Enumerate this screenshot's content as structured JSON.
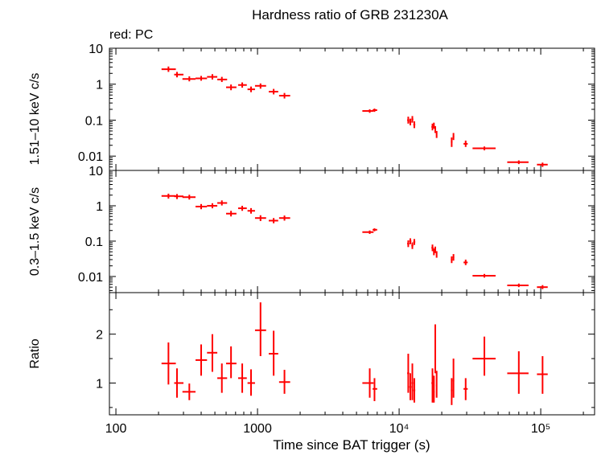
{
  "chart_data": {
    "type": "scatter",
    "title": "Hardness ratio of GRB 231230A",
    "legend_text": "red: PC",
    "xlabel": "Time since BAT trigger (s)",
    "x_scale": "log",
    "xlim": [
      90,
      240000
    ],
    "x_ticks": [
      {
        "value": 100,
        "label": "100"
      },
      {
        "value": 1000,
        "label": "1000"
      },
      {
        "value": 10000,
        "label": "10⁴"
      },
      {
        "value": 100000,
        "label": "10⁵"
      }
    ],
    "series_color": "#ff0000",
    "panels": [
      {
        "id": "hard",
        "ylabel": "1.51–10 keV c/s",
        "y_scale": "log",
        "ylim": [
          0.004,
          10
        ],
        "y_ticks": [
          {
            "value": 10,
            "label": "10"
          },
          {
            "value": 1,
            "label": "1"
          },
          {
            "value": 0.1,
            "label": "0.1"
          },
          {
            "value": 0.01,
            "label": "0.01"
          }
        ],
        "points": [
          {
            "t": 235,
            "tlo": 210,
            "thi": 265,
            "v": 2.6,
            "vlo": 2.2,
            "vhi": 3.1
          },
          {
            "t": 270,
            "tlo": 258,
            "thi": 300,
            "v": 1.85,
            "vlo": 1.55,
            "vhi": 2.2
          },
          {
            "t": 330,
            "tlo": 295,
            "thi": 365,
            "v": 1.4,
            "vlo": 1.2,
            "vhi": 1.65
          },
          {
            "t": 400,
            "tlo": 365,
            "thi": 440,
            "v": 1.45,
            "vlo": 1.25,
            "vhi": 1.7
          },
          {
            "t": 480,
            "tlo": 440,
            "thi": 520,
            "v": 1.6,
            "vlo": 1.35,
            "vhi": 1.9
          },
          {
            "t": 560,
            "tlo": 520,
            "thi": 610,
            "v": 1.35,
            "vlo": 1.15,
            "vhi": 1.6
          },
          {
            "t": 650,
            "tlo": 600,
            "thi": 710,
            "v": 0.82,
            "vlo": 0.68,
            "vhi": 0.98
          },
          {
            "t": 780,
            "tlo": 730,
            "thi": 840,
            "v": 0.95,
            "vlo": 0.8,
            "vhi": 1.12
          },
          {
            "t": 900,
            "tlo": 850,
            "thi": 960,
            "v": 0.72,
            "vlo": 0.6,
            "vhi": 0.86
          },
          {
            "t": 1050,
            "tlo": 960,
            "thi": 1150,
            "v": 0.9,
            "vlo": 0.75,
            "vhi": 1.05
          },
          {
            "t": 1300,
            "tlo": 1200,
            "thi": 1400,
            "v": 0.62,
            "vlo": 0.52,
            "vhi": 0.74
          },
          {
            "t": 1550,
            "tlo": 1420,
            "thi": 1700,
            "v": 0.48,
            "vlo": 0.4,
            "vhi": 0.57
          },
          {
            "t": 6200,
            "tlo": 5500,
            "thi": 6600,
            "v": 0.18,
            "vlo": 0.16,
            "vhi": 0.2
          },
          {
            "t": 6700,
            "tlo": 6500,
            "thi": 7000,
            "v": 0.19,
            "vlo": 0.17,
            "vhi": 0.21
          },
          {
            "t": 11600,
            "tlo": 11400,
            "thi": 11800,
            "v": 0.1,
            "vlo": 0.08,
            "vhi": 0.125
          },
          {
            "t": 12000,
            "tlo": 11800,
            "thi": 12200,
            "v": 0.09,
            "vlo": 0.072,
            "vhi": 0.11
          },
          {
            "t": 12400,
            "tlo": 12200,
            "thi": 12600,
            "v": 0.105,
            "vlo": 0.085,
            "vhi": 0.13
          },
          {
            "t": 12800,
            "tlo": 12600,
            "thi": 13000,
            "v": 0.075,
            "vlo": 0.06,
            "vhi": 0.093
          },
          {
            "t": 17200,
            "tlo": 16900,
            "thi": 17500,
            "v": 0.065,
            "vlo": 0.052,
            "vhi": 0.08
          },
          {
            "t": 17600,
            "tlo": 17400,
            "thi": 17800,
            "v": 0.07,
            "vlo": 0.058,
            "vhi": 0.085
          },
          {
            "t": 18000,
            "tlo": 17800,
            "thi": 18200,
            "v": 0.055,
            "vlo": 0.044,
            "vhi": 0.068
          },
          {
            "t": 18400,
            "tlo": 18200,
            "thi": 18600,
            "v": 0.04,
            "vlo": 0.032,
            "vhi": 0.05
          },
          {
            "t": 23500,
            "tlo": 23200,
            "thi": 23800,
            "v": 0.025,
            "vlo": 0.018,
            "vhi": 0.033
          },
          {
            "t": 24200,
            "tlo": 23900,
            "thi": 24500,
            "v": 0.035,
            "vlo": 0.028,
            "vhi": 0.044
          },
          {
            "t": 29500,
            "tlo": 28500,
            "thi": 30500,
            "v": 0.022,
            "vlo": 0.018,
            "vhi": 0.027
          },
          {
            "t": 40000,
            "tlo": 33000,
            "thi": 48000,
            "v": 0.0165,
            "vlo": 0.0145,
            "vhi": 0.0185
          },
          {
            "t": 70000,
            "tlo": 58000,
            "thi": 82000,
            "v": 0.0068,
            "vlo": 0.006,
            "vhi": 0.0076
          },
          {
            "t": 103000,
            "tlo": 94000,
            "thi": 112000,
            "v": 0.0058,
            "vlo": 0.005,
            "vhi": 0.0066
          }
        ]
      },
      {
        "id": "soft",
        "ylabel": "0.3–1.5 keV c/s",
        "y_scale": "log",
        "ylim": [
          0.0035,
          10
        ],
        "y_ticks": [
          {
            "value": 10,
            "label": "10"
          },
          {
            "value": 1,
            "label": "1"
          },
          {
            "value": 0.1,
            "label": "0.1"
          },
          {
            "value": 0.01,
            "label": "0.01"
          }
        ],
        "points": [
          {
            "t": 235,
            "tlo": 210,
            "thi": 265,
            "v": 1.9,
            "vlo": 1.6,
            "vhi": 2.2
          },
          {
            "t": 270,
            "tlo": 258,
            "thi": 300,
            "v": 1.85,
            "vlo": 1.55,
            "vhi": 2.15
          },
          {
            "t": 330,
            "tlo": 295,
            "thi": 365,
            "v": 1.75,
            "vlo": 1.5,
            "vhi": 2.05
          },
          {
            "t": 400,
            "tlo": 365,
            "thi": 440,
            "v": 0.95,
            "vlo": 0.8,
            "vhi": 1.12
          },
          {
            "t": 480,
            "tlo": 440,
            "thi": 520,
            "v": 1.0,
            "vlo": 0.85,
            "vhi": 1.18
          },
          {
            "t": 560,
            "tlo": 520,
            "thi": 610,
            "v": 1.2,
            "vlo": 1.02,
            "vhi": 1.42
          },
          {
            "t": 650,
            "tlo": 600,
            "thi": 710,
            "v": 0.6,
            "vlo": 0.5,
            "vhi": 0.72
          },
          {
            "t": 780,
            "tlo": 730,
            "thi": 840,
            "v": 0.85,
            "vlo": 0.72,
            "vhi": 1.0
          },
          {
            "t": 900,
            "tlo": 850,
            "thi": 960,
            "v": 0.72,
            "vlo": 0.6,
            "vhi": 0.86
          },
          {
            "t": 1050,
            "tlo": 960,
            "thi": 1150,
            "v": 0.45,
            "vlo": 0.37,
            "vhi": 0.54
          },
          {
            "t": 1300,
            "tlo": 1200,
            "thi": 1400,
            "v": 0.38,
            "vlo": 0.32,
            "vhi": 0.45
          },
          {
            "t": 1550,
            "tlo": 1420,
            "thi": 1700,
            "v": 0.45,
            "vlo": 0.38,
            "vhi": 0.53
          },
          {
            "t": 6200,
            "tlo": 5500,
            "thi": 6600,
            "v": 0.18,
            "vlo": 0.16,
            "vhi": 0.2
          },
          {
            "t": 6700,
            "tlo": 6500,
            "thi": 7000,
            "v": 0.21,
            "vlo": 0.19,
            "vhi": 0.23
          },
          {
            "t": 11600,
            "tlo": 11400,
            "thi": 11800,
            "v": 0.085,
            "vlo": 0.068,
            "vhi": 0.105
          },
          {
            "t": 12000,
            "tlo": 11800,
            "thi": 12200,
            "v": 0.1,
            "vlo": 0.082,
            "vhi": 0.12
          },
          {
            "t": 12400,
            "tlo": 12200,
            "thi": 12600,
            "v": 0.075,
            "vlo": 0.06,
            "vhi": 0.092
          },
          {
            "t": 12800,
            "tlo": 12600,
            "thi": 13000,
            "v": 0.095,
            "vlo": 0.078,
            "vhi": 0.115
          },
          {
            "t": 17200,
            "tlo": 16900,
            "thi": 17500,
            "v": 0.065,
            "vlo": 0.052,
            "vhi": 0.08
          },
          {
            "t": 17600,
            "tlo": 17400,
            "thi": 17800,
            "v": 0.05,
            "vlo": 0.04,
            "vhi": 0.062
          },
          {
            "t": 18000,
            "tlo": 17800,
            "thi": 18200,
            "v": 0.058,
            "vlo": 0.046,
            "vhi": 0.07
          },
          {
            "t": 18400,
            "tlo": 18200,
            "thi": 18600,
            "v": 0.042,
            "vlo": 0.034,
            "vhi": 0.052
          },
          {
            "t": 23500,
            "tlo": 23200,
            "thi": 23800,
            "v": 0.03,
            "vlo": 0.024,
            "vhi": 0.037
          },
          {
            "t": 24200,
            "tlo": 23900,
            "thi": 24500,
            "v": 0.035,
            "vlo": 0.028,
            "vhi": 0.043
          },
          {
            "t": 29500,
            "tlo": 28500,
            "thi": 30500,
            "v": 0.025,
            "vlo": 0.021,
            "vhi": 0.03
          },
          {
            "t": 40000,
            "tlo": 33000,
            "thi": 48000,
            "v": 0.0105,
            "vlo": 0.0093,
            "vhi": 0.0118
          },
          {
            "t": 70000,
            "tlo": 58000,
            "thi": 82000,
            "v": 0.0056,
            "vlo": 0.005,
            "vhi": 0.0063
          },
          {
            "t": 103000,
            "tlo": 94000,
            "thi": 112000,
            "v": 0.005,
            "vlo": 0.0044,
            "vhi": 0.0057
          }
        ]
      },
      {
        "id": "ratio",
        "ylabel": "Ratio",
        "y_scale": "linear",
        "ylim": [
          0.35,
          2.85
        ],
        "y_ticks": [
          {
            "value": 2,
            "label": "2"
          },
          {
            "value": 1,
            "label": "1"
          }
        ],
        "points": [
          {
            "t": 235,
            "tlo": 210,
            "thi": 265,
            "v": 1.4,
            "vlo": 0.97,
            "vhi": 1.83
          },
          {
            "t": 270,
            "tlo": 258,
            "thi": 300,
            "v": 1.0,
            "vlo": 0.7,
            "vhi": 1.3
          },
          {
            "t": 330,
            "tlo": 295,
            "thi": 365,
            "v": 0.82,
            "vlo": 0.65,
            "vhi": 0.99
          },
          {
            "t": 400,
            "tlo": 365,
            "thi": 440,
            "v": 1.47,
            "vlo": 1.15,
            "vhi": 1.79
          },
          {
            "t": 480,
            "tlo": 440,
            "thi": 520,
            "v": 1.62,
            "vlo": 1.23,
            "vhi": 2.0
          },
          {
            "t": 560,
            "tlo": 520,
            "thi": 610,
            "v": 1.1,
            "vlo": 0.8,
            "vhi": 1.4
          },
          {
            "t": 650,
            "tlo": 600,
            "thi": 710,
            "v": 1.4,
            "vlo": 1.1,
            "vhi": 1.75
          },
          {
            "t": 780,
            "tlo": 730,
            "thi": 840,
            "v": 1.1,
            "vlo": 0.8,
            "vhi": 1.4
          },
          {
            "t": 900,
            "tlo": 850,
            "thi": 960,
            "v": 1.0,
            "vlo": 0.74,
            "vhi": 1.28
          },
          {
            "t": 1050,
            "tlo": 960,
            "thi": 1150,
            "v": 2.08,
            "vlo": 1.55,
            "vhi": 2.65
          },
          {
            "t": 1300,
            "tlo": 1200,
            "thi": 1400,
            "v": 1.6,
            "vlo": 1.15,
            "vhi": 2.07
          },
          {
            "t": 1550,
            "tlo": 1420,
            "thi": 1700,
            "v": 1.02,
            "vlo": 0.78,
            "vhi": 1.27
          },
          {
            "t": 6200,
            "tlo": 5500,
            "thi": 6600,
            "v": 1.0,
            "vlo": 0.7,
            "vhi": 1.3
          },
          {
            "t": 6700,
            "tlo": 6500,
            "thi": 7000,
            "v": 0.88,
            "vlo": 0.63,
            "vhi": 1.1
          },
          {
            "t": 11600,
            "tlo": 11400,
            "thi": 11800,
            "v": 1.2,
            "vlo": 0.8,
            "vhi": 1.6
          },
          {
            "t": 12000,
            "tlo": 11800,
            "thi": 12200,
            "v": 0.92,
            "vlo": 0.65,
            "vhi": 1.2
          },
          {
            "t": 12400,
            "tlo": 12200,
            "thi": 12600,
            "v": 1.0,
            "vlo": 0.65,
            "vhi": 1.4
          },
          {
            "t": 12800,
            "tlo": 12600,
            "thi": 13000,
            "v": 0.85,
            "vlo": 0.6,
            "vhi": 1.1
          },
          {
            "t": 17200,
            "tlo": 16900,
            "thi": 17500,
            "v": 1.0,
            "vlo": 0.6,
            "vhi": 1.3
          },
          {
            "t": 17600,
            "tlo": 17400,
            "thi": 17800,
            "v": 0.82,
            "vlo": 0.6,
            "vhi": 1.15
          },
          {
            "t": 18000,
            "tlo": 17800,
            "thi": 18200,
            "v": 1.7,
            "vlo": 1.2,
            "vhi": 2.2
          },
          {
            "t": 18400,
            "tlo": 18200,
            "thi": 18600,
            "v": 0.95,
            "vlo": 0.7,
            "vhi": 1.25
          },
          {
            "t": 23500,
            "tlo": 23200,
            "thi": 23800,
            "v": 0.85,
            "vlo": 0.55,
            "vhi": 1.1
          },
          {
            "t": 24200,
            "tlo": 23900,
            "thi": 24500,
            "v": 1.05,
            "vlo": 0.7,
            "vhi": 1.5
          },
          {
            "t": 29500,
            "tlo": 28500,
            "thi": 30500,
            "v": 0.88,
            "vlo": 0.65,
            "vhi": 1.1
          },
          {
            "t": 40000,
            "tlo": 33000,
            "thi": 48000,
            "v": 1.5,
            "vlo": 1.15,
            "vhi": 1.95
          },
          {
            "t": 70000,
            "tlo": 58000,
            "thi": 82000,
            "v": 1.2,
            "vlo": 0.78,
            "vhi": 1.65
          },
          {
            "t": 103000,
            "tlo": 94000,
            "thi": 112000,
            "v": 1.18,
            "vlo": 0.78,
            "vhi": 1.55
          }
        ]
      }
    ]
  }
}
